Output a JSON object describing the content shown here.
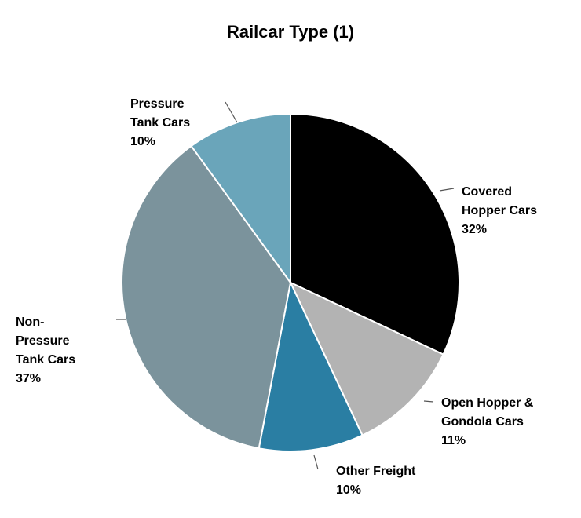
{
  "chart_data": {
    "type": "pie",
    "title": "Railcar Type (1)",
    "categories": [
      "Covered\nHopper Cars",
      "Open Hopper &\nGondola Cars",
      "Other Freight",
      "Non-\nPressure\nTank Cars",
      "Pressure\nTank Cars"
    ],
    "values": [
      32,
      11,
      10,
      37,
      10
    ],
    "value_labels": [
      "32%",
      "11%",
      "10%",
      "37%",
      "10%"
    ],
    "colors": [
      "#000000",
      "#b3b3b3",
      "#2a7ea3",
      "#7b939c",
      "#6aa5ba"
    ]
  }
}
